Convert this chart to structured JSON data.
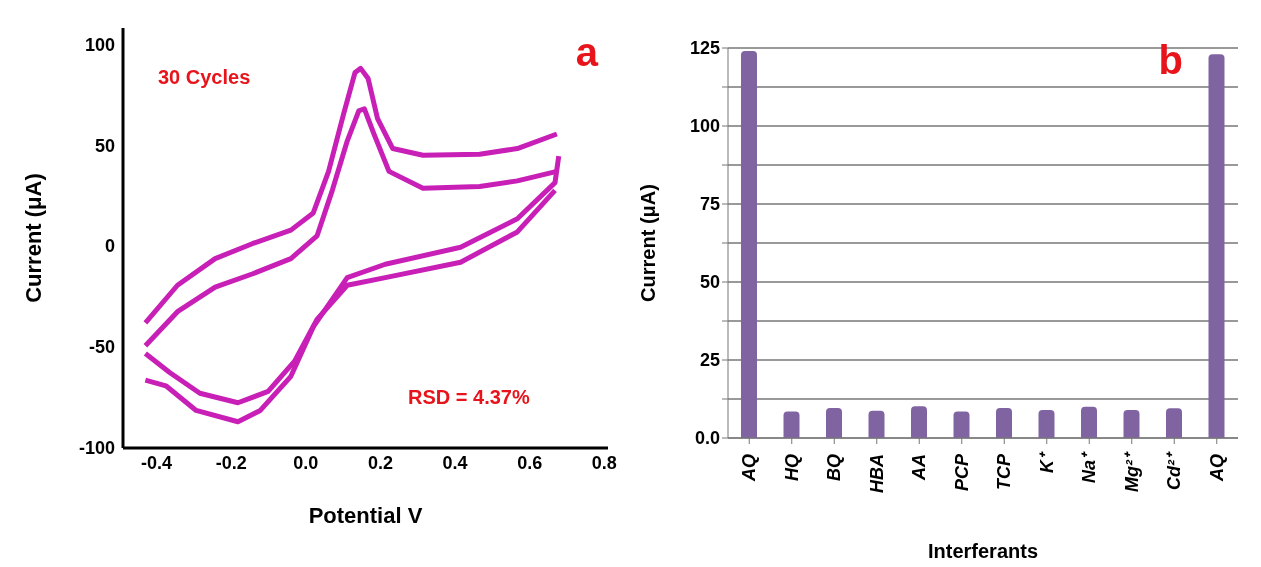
{
  "chart_data": [
    {
      "type": "line",
      "xlabel": "Potential V",
      "ylabel": "Current (μA)",
      "annotations": [
        "a",
        "30 Cycles",
        "RSD = 4.37%"
      ],
      "xlim": [
        -0.49,
        0.81
      ],
      "ylim": [
        -100,
        108
      ],
      "xticks": [
        -0.4,
        -0.2,
        {
          "value": 0,
          "label": "0.0"
        },
        0.2,
        0.4,
        0.6,
        0.8
      ],
      "yticks": [
        -100,
        -50,
        0,
        50,
        100
      ],
      "grid": false,
      "marker": "none",
      "line_style": "solid",
      "series": [
        {
          "color": "#c81fb6",
          "x": [
            -0.43,
            -0.344,
            -0.243,
            -0.142,
            -0.04,
            0.02,
            0.061,
            0.101,
            0.132,
            0.147,
            0.167,
            0.192,
            0.233,
            0.314,
            0.466,
            0.567,
            0.673
          ],
          "values": [
            -38,
            -19.4,
            -6.2,
            1.3,
            7.9,
            16.4,
            37,
            65.2,
            86,
            88,
            83,
            63.3,
            48.3,
            45,
            45.5,
            48.3,
            55.5
          ]
        },
        {
          "color": "#c81fb6",
          "x": [
            0.678,
            0.668,
            0.567,
            0.415,
            0.213,
            0.111,
            0.02,
            -0.04,
            -0.122,
            -0.182,
            -0.294,
            -0.375,
            -0.43
          ],
          "values": [
            44.5,
            31.4,
            13.5,
            -0.6,
            -9,
            -15.6,
            -40,
            -64.5,
            -81.4,
            -87,
            -81.4,
            -69.2,
            -66.4
          ]
        },
        {
          "color": "#c81fb6",
          "x": [
            -0.43,
            -0.344,
            -0.243,
            -0.142,
            -0.04,
            0.03,
            0.071,
            0.111,
            0.142,
            0.157,
            0.182,
            0.223,
            0.314,
            0.466,
            0.567,
            0.673
          ],
          "values": [
            -49.4,
            -32.5,
            -20.3,
            -13.7,
            -6.2,
            5,
            27.6,
            52,
            67,
            68,
            55.8,
            37,
            28.6,
            29.5,
            32.3,
            37
          ]
        },
        {
          "color": "#c81fb6",
          "x": [
            0.668,
            0.567,
            0.415,
            0.213,
            0.111,
            0.03,
            -0.03,
            -0.101,
            -0.182,
            -0.284,
            -0.365,
            -0.43
          ],
          "values": [
            27.6,
            7,
            -8,
            -15.6,
            -19.4,
            -36.3,
            -57,
            -72,
            -77.6,
            -72.9,
            -62.6,
            -53.2
          ]
        }
      ]
    },
    {
      "type": "bar",
      "xlabel": "Interferants",
      "ylabel": "Current (μA)",
      "annotations": [
        "b"
      ],
      "categories": [
        "AQ",
        "HQ",
        "BQ",
        "HBA",
        "AA",
        "PCP",
        "TCP",
        "K⁺",
        "Na⁺",
        "Mg²⁺",
        "Cd²⁺",
        "AQ"
      ],
      "values": [
        124,
        8.5,
        9.6,
        8.7,
        10.2,
        8.5,
        9.6,
        9,
        10,
        9,
        9.5,
        123
      ],
      "color": "#8064a2",
      "ylim": [
        0,
        125
      ],
      "yticks": [
        {
          "value": 0,
          "label": "0.0"
        },
        {
          "value": 12.5,
          "label": null
        },
        25,
        {
          "value": 37.5,
          "label": null
        },
        50,
        {
          "value": 62.5,
          "label": null
        },
        75,
        {
          "value": 87.5,
          "label": null
        },
        100,
        {
          "value": 112.5,
          "label": null
        },
        125
      ],
      "grid": "y"
    }
  ]
}
